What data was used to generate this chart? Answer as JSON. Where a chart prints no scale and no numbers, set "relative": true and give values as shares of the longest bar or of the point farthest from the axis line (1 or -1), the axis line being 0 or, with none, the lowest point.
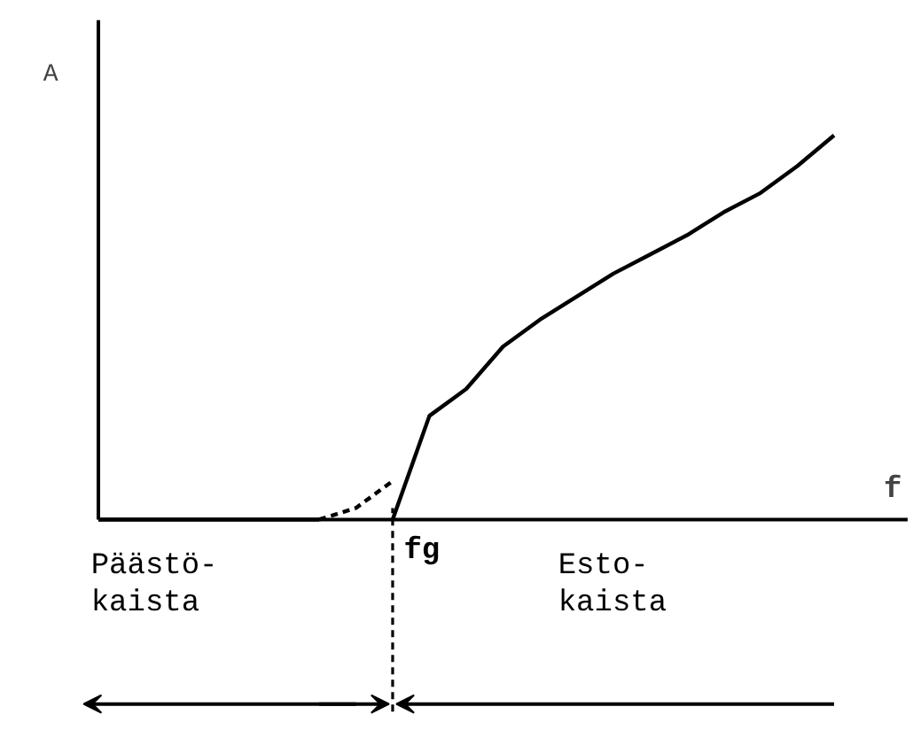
{
  "chart_data": {
    "type": "line",
    "relative": true,
    "xlabel": "f",
    "ylabel": "A",
    "categories": [
      null,
      null,
      null,
      null,
      null,
      null,
      null,
      null,
      null,
      null,
      null,
      null,
      null,
      null,
      null,
      null,
      null,
      null,
      null,
      null,
      null
    ],
    "series": [
      {
        "color": "#000000",
        "line_style": "solid",
        "values": [
          0,
          0,
          0,
          0,
          0,
          0,
          0,
          null,
          null,
          null,
          null,
          null,
          null,
          null,
          null,
          null,
          null,
          null,
          null,
          null,
          null
        ]
      },
      {
        "color": "#000000",
        "line_style": "dashed",
        "values": [
          null,
          null,
          null,
          null,
          null,
          null,
          0,
          0.03,
          0.1,
          null,
          null,
          null,
          null,
          null,
          null,
          null,
          null,
          null,
          null,
          null,
          null
        ]
      },
      {
        "color": "#000000",
        "line_style": "solid",
        "values": [
          null,
          null,
          null,
          null,
          null,
          null,
          null,
          null,
          0,
          0.27,
          0.34,
          0.45,
          0.52,
          0.58,
          0.64,
          0.69,
          0.74,
          0.8,
          0.85,
          0.92,
          1.0
        ]
      }
    ],
    "annotations": [
      "Päästö-\nkaista",
      "Esto-\nkaista",
      "fg"
    ]
  }
}
